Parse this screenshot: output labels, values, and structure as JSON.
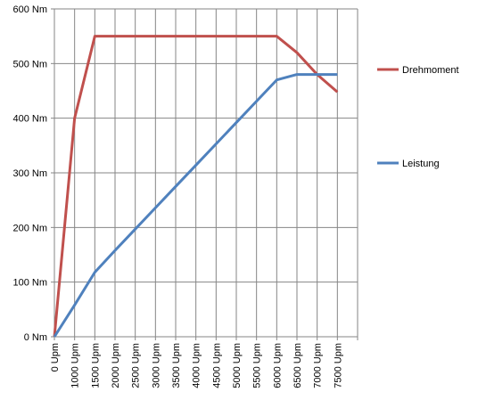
{
  "chart_data": {
    "type": "line",
    "title": "",
    "xlabel": "",
    "ylabel": "",
    "categories": [
      "0 Upm",
      "1000 Upm",
      "1500 Upm",
      "2000 Upm",
      "2500 Upm",
      "3000 Upm",
      "3500 Upm",
      "4000 Upm",
      "4500 Upm",
      "5000 Upm",
      "5500 Upm",
      "6000 Upm",
      "6500 Upm",
      "7000 Upm",
      "7500 Upm"
    ],
    "y_ticks": [
      "0 Nm",
      "100 Nm",
      "200 Nm",
      "300 Nm",
      "400 Nm",
      "500 Nm",
      "600 Nm"
    ],
    "ylim": [
      0,
      600
    ],
    "grid": true,
    "legend_position": "right",
    "series": [
      {
        "name": "Drehmoment",
        "color": "#C0504D",
        "values": [
          0,
          400,
          550,
          550,
          550,
          550,
          550,
          550,
          550,
          550,
          550,
          550,
          520,
          480,
          448
        ]
      },
      {
        "name": "Leistung",
        "color": "#4F81BD",
        "values": [
          0,
          58,
          118,
          158,
          197,
          236,
          275,
          314,
          353,
          392,
          431,
          470,
          480,
          480,
          480
        ]
      }
    ]
  }
}
